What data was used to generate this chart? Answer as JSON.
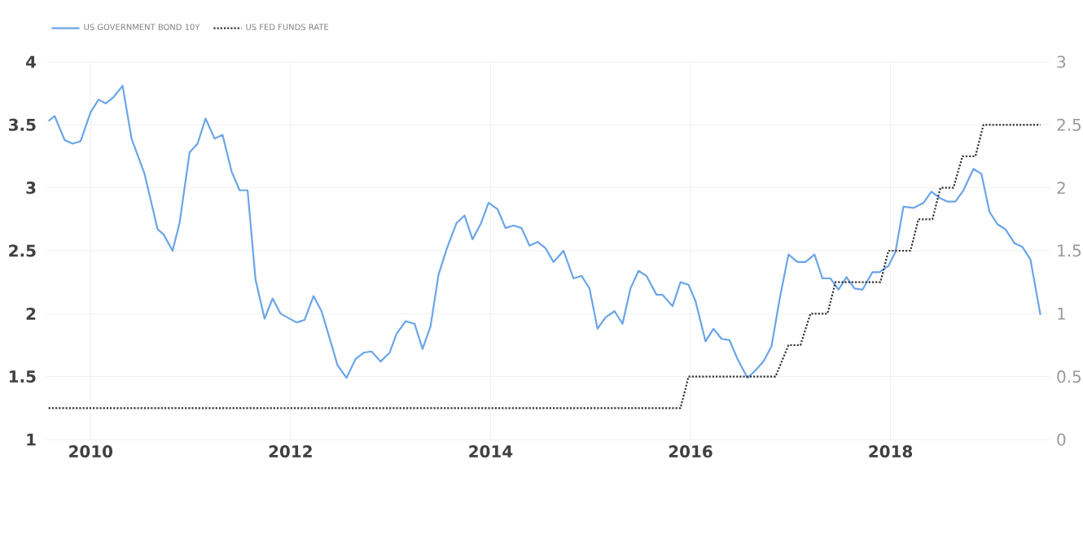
{
  "chart_data": {
    "type": "line",
    "legend": "top left",
    "grid": true,
    "marker": "none",
    "xlim": [
      2009.55,
      2019.6
    ],
    "xticks": [
      2010,
      2012,
      2014,
      2016,
      2018
    ],
    "ylim": [
      1,
      4
    ],
    "yticks": [
      1,
      1.5,
      2,
      2.5,
      3,
      3.5,
      4
    ],
    "y2lim": [
      0,
      3
    ],
    "y2ticks": [
      0,
      0.5,
      1,
      1.5,
      2,
      2.5,
      3
    ],
    "series": [
      {
        "name": "US GOVERNMENT BOND 10Y",
        "color": "#6aa5e8",
        "line_style": "solid",
        "x": [
          2009.58,
          2009.64,
          2009.74,
          2009.82,
          2009.9,
          2010.0,
          2010.08,
          2010.15,
          2010.23,
          2010.32,
          2010.41,
          2010.54,
          2010.67,
          2010.73,
          2010.82,
          2010.89,
          2010.99,
          2011.07,
          2011.15,
          2011.24,
          2011.32,
          2011.41,
          2011.49,
          2011.57,
          2011.65,
          2011.74,
          2011.82,
          2011.9,
          2012.06,
          2012.14,
          2012.23,
          2012.31,
          2012.4,
          2012.47,
          2012.56,
          2012.65,
          2012.73,
          2012.81,
          2012.9,
          2012.99,
          2013.06,
          2013.15,
          2013.24,
          2013.32,
          2013.4,
          2013.48,
          2013.56,
          2013.66,
          2013.74,
          2013.82,
          2013.9,
          2013.98,
          2014.07,
          2014.15,
          2014.23,
          2014.31,
          2014.39,
          2014.47,
          2014.55,
          2014.63,
          2014.73,
          2014.83,
          2014.91,
          2014.99,
          2015.07,
          2015.15,
          2015.24,
          2015.32,
          2015.4,
          2015.48,
          2015.56,
          2015.66,
          2015.72,
          2015.82,
          2015.9,
          2015.98,
          2016.05,
          2016.15,
          2016.23,
          2016.31,
          2016.39,
          2016.47,
          2016.57,
          2016.65,
          2016.73,
          2016.81,
          2016.89,
          2016.98,
          2017.07,
          2017.15,
          2017.24,
          2017.32,
          2017.4,
          2017.48,
          2017.56,
          2017.64,
          2017.72,
          2017.82,
          2017.89,
          2017.98,
          2018.05,
          2018.13,
          2018.23,
          2018.33,
          2018.41,
          2018.49,
          2018.57,
          2018.65,
          2018.73,
          2018.83,
          2018.91,
          2018.99,
          2019.07,
          2019.15,
          2019.24,
          2019.32,
          2019.4,
          2019.5
        ],
        "values": [
          3.53,
          3.57,
          3.38,
          3.35,
          3.37,
          3.6,
          3.7,
          3.67,
          3.72,
          3.81,
          3.39,
          3.11,
          2.67,
          2.63,
          2.5,
          2.72,
          3.28,
          3.35,
          3.55,
          3.39,
          3.42,
          3.13,
          2.98,
          2.98,
          2.27,
          1.96,
          2.12,
          2.0,
          1.93,
          1.95,
          2.14,
          2.02,
          1.78,
          1.59,
          1.49,
          1.64,
          1.69,
          1.7,
          1.62,
          1.69,
          1.84,
          1.94,
          1.92,
          1.72,
          1.9,
          2.31,
          2.51,
          2.72,
          2.78,
          2.59,
          2.71,
          2.88,
          2.83,
          2.68,
          2.7,
          2.68,
          2.54,
          2.57,
          2.52,
          2.41,
          2.5,
          2.28,
          2.3,
          2.2,
          1.88,
          1.97,
          2.02,
          1.92,
          2.2,
          2.34,
          2.3,
          2.15,
          2.15,
          2.06,
          2.25,
          2.23,
          2.1,
          1.78,
          1.88,
          1.8,
          1.79,
          1.64,
          1.49,
          1.55,
          1.62,
          1.74,
          2.11,
          2.47,
          2.41,
          2.41,
          2.47,
          2.28,
          2.28,
          2.19,
          2.29,
          2.2,
          2.19,
          2.33,
          2.33,
          2.38,
          2.49,
          2.85,
          2.84,
          2.88,
          2.97,
          2.92,
          2.89,
          2.89,
          2.98,
          3.15,
          3.11,
          2.81,
          2.71,
          2.67,
          2.56,
          2.53,
          2.43,
          1.99
        ]
      },
      {
        "name": "US FED FUNDS RATE",
        "color": "#333333",
        "line_style": "dotted",
        "axis": "y2",
        "x": [
          2009.58,
          2015.9,
          2015.98,
          2016.85,
          2016.98,
          2017.1,
          2017.2,
          2017.37,
          2017.45,
          2017.9,
          2017.98,
          2018.2,
          2018.28,
          2018.42,
          2018.5,
          2018.63,
          2018.72,
          2018.85,
          2018.93,
          2019.5
        ],
        "values": [
          0.25,
          0.25,
          0.5,
          0.5,
          0.75,
          0.75,
          1.0,
          1.0,
          1.25,
          1.25,
          1.5,
          1.5,
          1.75,
          1.75,
          2.0,
          2.0,
          2.25,
          2.25,
          2.5,
          2.5
        ]
      }
    ]
  }
}
